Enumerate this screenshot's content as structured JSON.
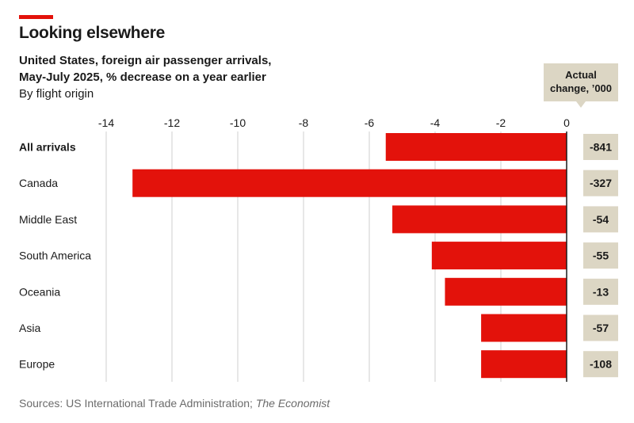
{
  "header": {
    "title": "Looking elsewhere",
    "subtitle_line1": "United States, foreign air passenger arrivals,",
    "subtitle_line2": "May-July 2025, % decrease on a year earlier",
    "subtitle_line3": "By flight origin",
    "column_header_line1": "Actual",
    "column_header_line2": "change, ’000"
  },
  "footer": {
    "source_prefix": "Sources: US International Trade Administration; ",
    "source_italic": "The Economist"
  },
  "colors": {
    "accent": "#e3120b",
    "bar": "#e3120b",
    "label_box": "#dcd6c4",
    "grid": "#cfcfcf"
  },
  "chart_data": {
    "type": "bar",
    "orientation": "horizontal",
    "title": "Looking elsewhere",
    "xlabel": "% decrease on a year earlier",
    "ylabel": "By flight origin",
    "xlim": [
      -14,
      0
    ],
    "x_ticks": [
      -14,
      -12,
      -10,
      -8,
      -6,
      -4,
      -2,
      0
    ],
    "categories": [
      "All arrivals",
      "Canada",
      "Middle East",
      "South America",
      "Oceania",
      "Asia",
      "Europe"
    ],
    "bold_categories": [
      "All arrivals"
    ],
    "values": [
      -5.5,
      -13.2,
      -5.3,
      -4.1,
      -3.7,
      -2.6,
      -2.6
    ],
    "actual_change_thousands": [
      "-841",
      "-327",
      "-54",
      "-55",
      "-13",
      "-57",
      "-108"
    ],
    "grid": true
  }
}
